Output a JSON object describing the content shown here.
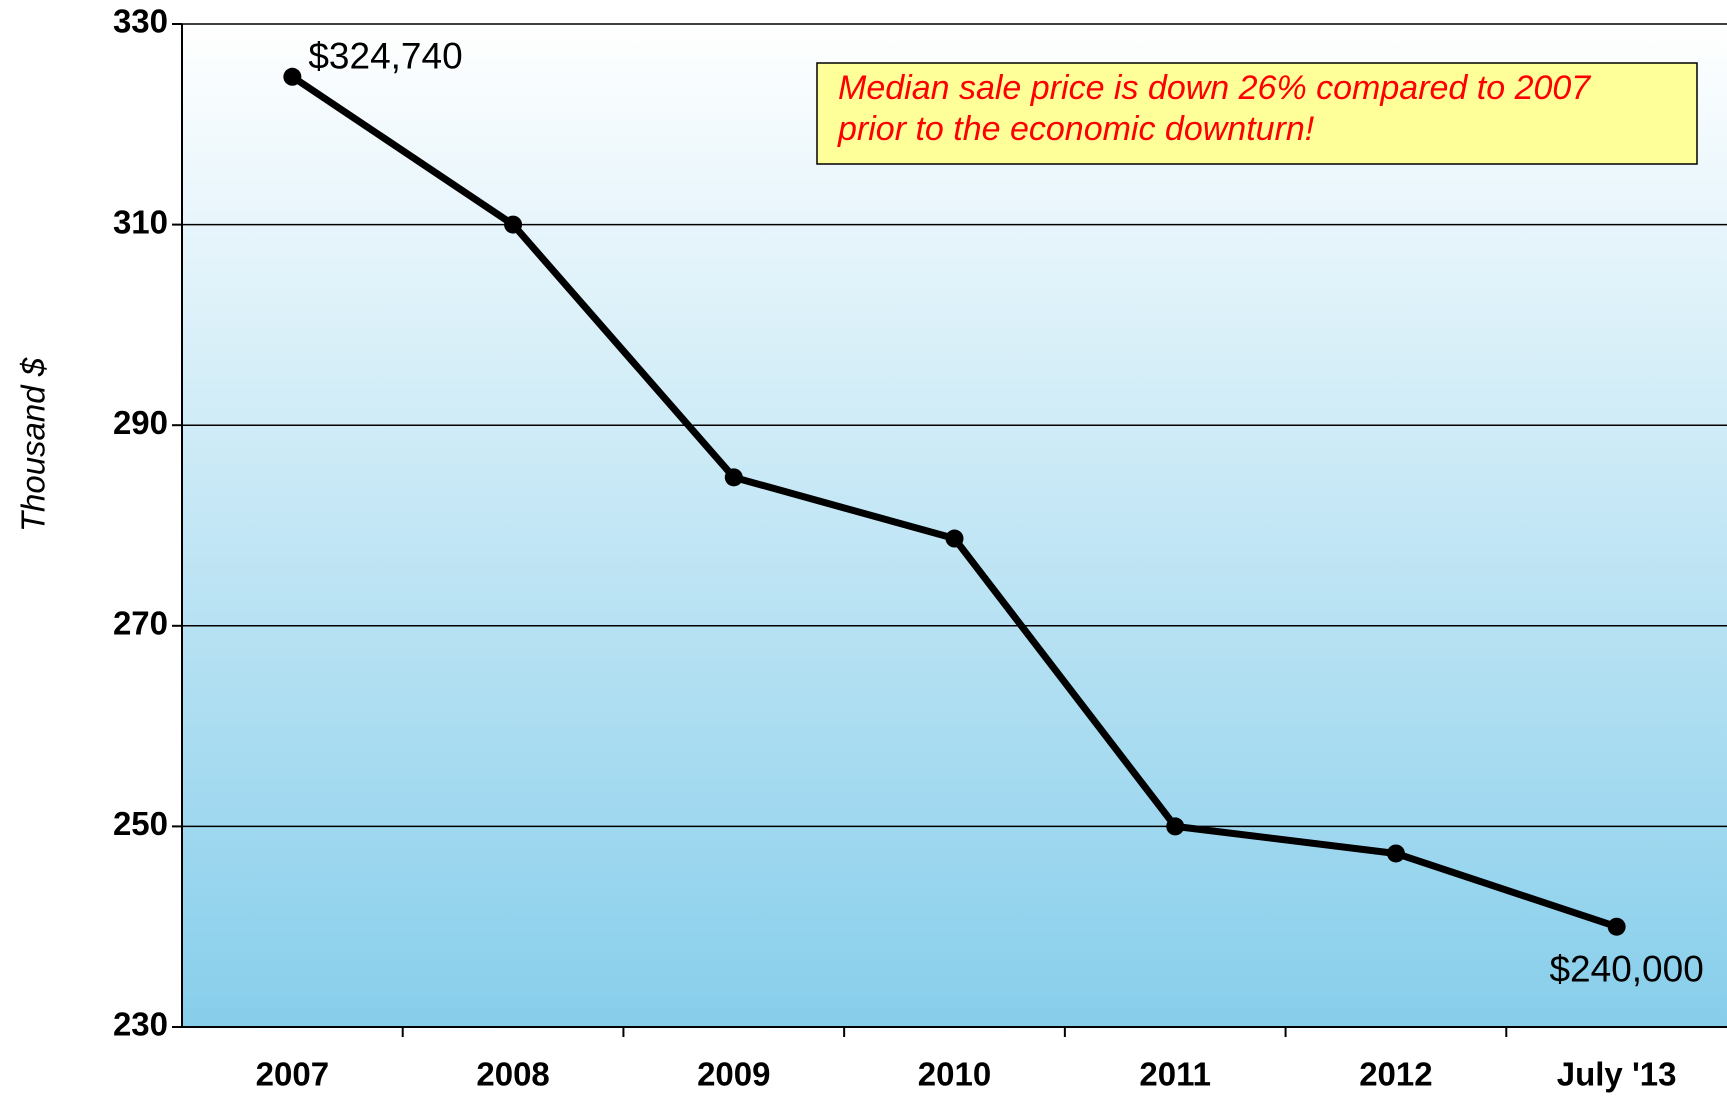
{
  "chart_data": {
    "type": "line",
    "y_label": "Thousand $",
    "annotation": "Median sale price is down 26% compared to 2007 prior to the economic downturn!",
    "categories": [
      "2007",
      "2008",
      "2009",
      "2010",
      "2011",
      "2012",
      "July '13"
    ],
    "series": [
      {
        "name": "Median sale price",
        "color": "#000000",
        "values": [
          324.74,
          310,
          284.8,
          278.7,
          250,
          247.3,
          240
        ],
        "value_labels": [
          "$324,740",
          null,
          null,
          null,
          null,
          null,
          "$240,000"
        ]
      }
    ],
    "ylim": [
      230,
      330
    ],
    "yticks": [
      230,
      250,
      270,
      290,
      310,
      330
    ],
    "grid": true
  }
}
